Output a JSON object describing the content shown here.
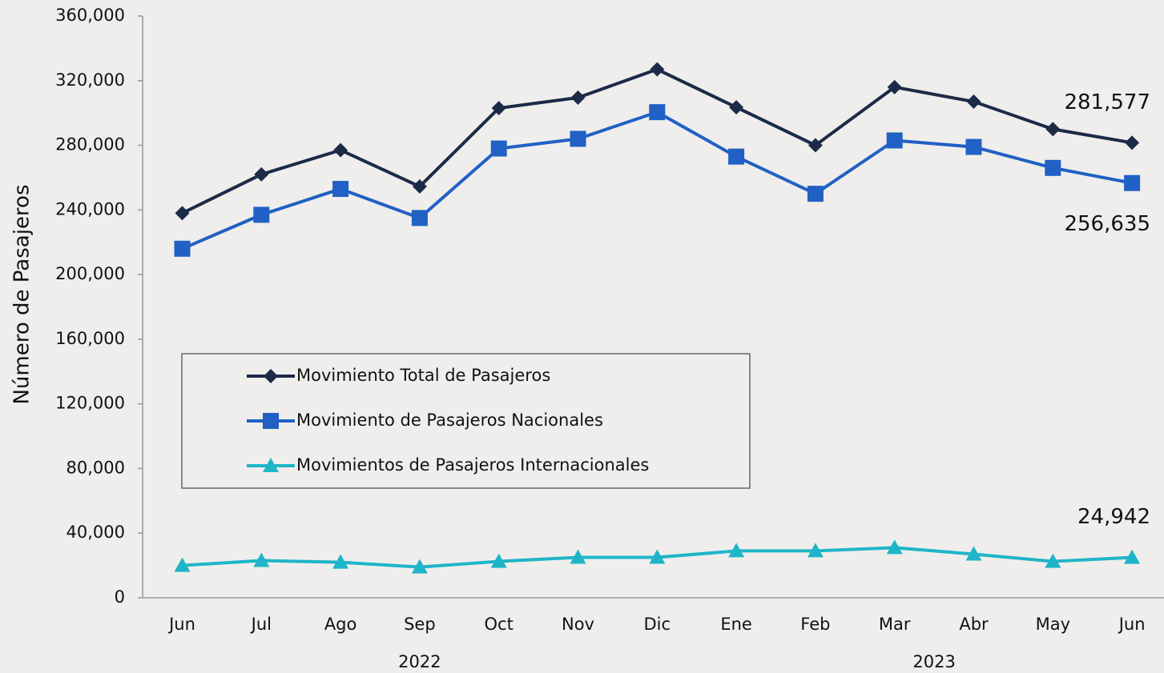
{
  "chart_data": {
    "type": "line",
    "y_label": "Número de Pasajeros",
    "categories": [
      "Jun",
      "Jul",
      "Ago",
      "Sep",
      "Oct",
      "Nov",
      "Dic",
      "Ene",
      "Feb",
      "Mar",
      "Abr",
      "May",
      "Jun"
    ],
    "x_groups": [
      {
        "label": "2022",
        "start": 0,
        "end": 6
      },
      {
        "label": "2023",
        "start": 7,
        "end": 12
      }
    ],
    "ylim": [
      0,
      360000
    ],
    "yticks": [
      {
        "value": 0,
        "label": "0"
      },
      {
        "value": 40000,
        "label": "40,000"
      },
      {
        "value": 80000,
        "label": "80,000"
      },
      {
        "value": 120000,
        "label": "120,000"
      },
      {
        "value": 160000,
        "label": "160,000"
      },
      {
        "value": 200000,
        "label": "200,000"
      },
      {
        "value": 240000,
        "label": "240,000"
      },
      {
        "value": 280000,
        "label": "280,000"
      },
      {
        "value": 320000,
        "label": "320,000"
      },
      {
        "value": 360000,
        "label": "360,000"
      }
    ],
    "grid": false,
    "legend": "left",
    "series": [
      {
        "name": "Movimiento Total de Pasajeros",
        "color": "#1b2a47",
        "marker": "diamond",
        "values": [
          238000,
          262000,
          277000,
          254500,
          303000,
          309500,
          327000,
          303500,
          280000,
          316000,
          307000,
          290000,
          281577
        ],
        "value_labels": [
          null,
          null,
          null,
          null,
          null,
          null,
          null,
          null,
          null,
          null,
          null,
          null,
          "281,577"
        ]
      },
      {
        "name": "Movimiento de Pasajeros Nacionales",
        "color": "#2160c4",
        "marker": "square",
        "values": [
          216000,
          237000,
          253000,
          235000,
          278000,
          284000,
          300500,
          273000,
          250000,
          283000,
          279000,
          266000,
          256635
        ],
        "value_labels": [
          null,
          null,
          null,
          null,
          null,
          null,
          null,
          null,
          null,
          null,
          null,
          null,
          "256,635"
        ]
      },
      {
        "name": "Movimientos de Pasajeros Internacionales",
        "color": "#1fb5c8",
        "marker": "triangle",
        "values": [
          20000,
          23000,
          22000,
          19000,
          22500,
          25000,
          25000,
          29000,
          29000,
          31000,
          27000,
          22500,
          24942
        ],
        "value_labels": [
          null,
          null,
          null,
          null,
          null,
          null,
          null,
          null,
          null,
          null,
          null,
          null,
          "24,942"
        ]
      }
    ]
  }
}
